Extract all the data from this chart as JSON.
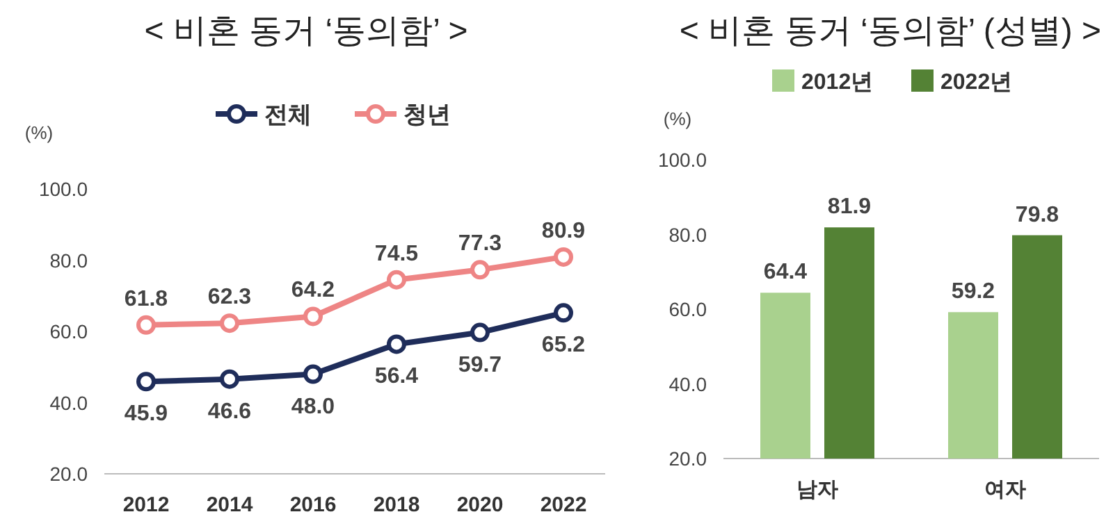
{
  "chart_data": [
    {
      "type": "line",
      "title": "< 비혼 동거 ‘동의함’ >",
      "ylabel": "(%)",
      "categories": [
        "2012",
        "2014",
        "2016",
        "2018",
        "2020",
        "2022"
      ],
      "series": [
        {
          "name": "전체",
          "color": "#1f2d5a",
          "values": [
            45.9,
            46.6,
            48.0,
            56.4,
            59.7,
            65.2
          ],
          "value_labels": [
            "45.9",
            "46.6",
            "48.0",
            "56.4",
            "59.7",
            "65.2"
          ]
        },
        {
          "name": "청년",
          "color": "#ee8585",
          "values": [
            61.8,
            62.3,
            64.2,
            74.5,
            77.3,
            80.9
          ],
          "value_labels": [
            "61.8",
            "62.3",
            "64.2",
            "74.5",
            "77.3",
            "80.9"
          ]
        }
      ],
      "ylim": [
        20,
        100
      ],
      "yticks": [
        {
          "value": 20,
          "label": "20.0"
        },
        {
          "value": 40,
          "label": "40.0"
        },
        {
          "value": 60,
          "label": "60.0"
        },
        {
          "value": 80,
          "label": "80.0"
        },
        {
          "value": 100,
          "label": "100.0"
        }
      ],
      "marker": "circle",
      "legend": "top",
      "grid": false
    },
    {
      "type": "bar",
      "title": "< 비혼 동거 ‘동의함’ (성별) >",
      "ylabel": "(%)",
      "categories": [
        "남자",
        "여자"
      ],
      "series": [
        {
          "name": "2012년",
          "color": "#a9d18e",
          "values": [
            64.4,
            59.2
          ],
          "value_labels": [
            "64.4",
            "59.2"
          ]
        },
        {
          "name": "2022년",
          "color": "#548235",
          "values": [
            81.9,
            79.8
          ],
          "value_labels": [
            "81.9",
            "79.8"
          ]
        }
      ],
      "ylim": [
        20,
        100
      ],
      "yticks": [
        {
          "value": 20,
          "label": "20.0"
        },
        {
          "value": 40,
          "label": "40.0"
        },
        {
          "value": 60,
          "label": "60.0"
        },
        {
          "value": 80,
          "label": "80.0"
        },
        {
          "value": 100,
          "label": "100.0"
        }
      ],
      "legend": "top",
      "grid": false
    }
  ]
}
